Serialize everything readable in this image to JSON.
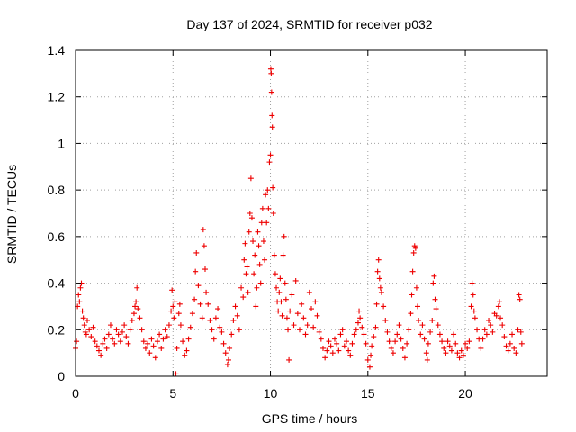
{
  "chart_data": {
    "type": "scatter",
    "title": "Day 137 of 2024, SRMTID for receiver p032",
    "xlabel": "GPS time / hours",
    "ylabel": "SRMTID / TECUs",
    "xlim": [
      0,
      24.2
    ],
    "ylim": [
      0,
      1.4
    ],
    "xticks": [
      0,
      5,
      10,
      15,
      20
    ],
    "xtick_labels": [
      "0",
      "5",
      "10",
      "15",
      "20"
    ],
    "yticks": [
      0,
      0.2,
      0.4,
      0.6,
      0.8,
      1.0,
      1.2,
      1.4
    ],
    "ytick_labels": [
      "0",
      "0.2",
      "0.4",
      "0.6",
      "0.8",
      "1",
      "1.2",
      "1.4"
    ],
    "grid": true,
    "marker": "+",
    "color": "#ee0000",
    "series": [
      {
        "name": "p032",
        "points": [
          [
            0.0,
            0.12
          ],
          [
            0.05,
            0.15
          ],
          [
            0.1,
            0.3
          ],
          [
            0.15,
            0.35
          ],
          [
            0.2,
            0.32
          ],
          [
            0.25,
            0.38
          ],
          [
            0.3,
            0.4
          ],
          [
            0.35,
            0.28
          ],
          [
            0.4,
            0.25
          ],
          [
            0.45,
            0.22
          ],
          [
            0.5,
            0.19
          ],
          [
            0.55,
            0.18
          ],
          [
            0.6,
            0.24
          ],
          [
            0.7,
            0.2
          ],
          [
            0.8,
            0.17
          ],
          [
            0.9,
            0.21
          ],
          [
            1.0,
            0.15
          ],
          [
            1.1,
            0.13
          ],
          [
            1.2,
            0.11
          ],
          [
            1.3,
            0.09
          ],
          [
            1.4,
            0.14
          ],
          [
            1.5,
            0.16
          ],
          [
            1.6,
            0.12
          ],
          [
            1.7,
            0.18
          ],
          [
            1.8,
            0.22
          ],
          [
            1.9,
            0.16
          ],
          [
            2.0,
            0.14
          ],
          [
            2.1,
            0.2
          ],
          [
            2.2,
            0.18
          ],
          [
            2.3,
            0.15
          ],
          [
            2.4,
            0.19
          ],
          [
            2.5,
            0.22
          ],
          [
            2.6,
            0.17
          ],
          [
            2.7,
            0.14
          ],
          [
            2.8,
            0.2
          ],
          [
            2.9,
            0.24
          ],
          [
            3.0,
            0.27
          ],
          [
            3.05,
            0.3
          ],
          [
            3.1,
            0.32
          ],
          [
            3.15,
            0.38
          ],
          [
            3.2,
            0.29
          ],
          [
            3.3,
            0.25
          ],
          [
            3.4,
            0.2
          ],
          [
            3.5,
            0.15
          ],
          [
            3.6,
            0.12
          ],
          [
            3.7,
            0.14
          ],
          [
            3.8,
            0.1
          ],
          [
            3.9,
            0.16
          ],
          [
            4.0,
            0.13
          ],
          [
            4.1,
            0.08
          ],
          [
            4.2,
            0.15
          ],
          [
            4.3,
            0.18
          ],
          [
            4.4,
            0.12
          ],
          [
            4.5,
            0.16
          ],
          [
            4.6,
            0.2
          ],
          [
            4.7,
            0.17
          ],
          [
            4.8,
            0.22
          ],
          [
            4.9,
            0.28
          ],
          [
            4.95,
            0.37
          ],
          [
            5.0,
            0.3
          ],
          [
            5.05,
            0.25
          ],
          [
            5.1,
            0.32
          ],
          [
            5.15,
            0.01
          ],
          [
            5.2,
            0.12
          ],
          [
            5.3,
            0.27
          ],
          [
            5.35,
            0.31
          ],
          [
            5.4,
            0.22
          ],
          [
            5.5,
            0.15
          ],
          [
            5.6,
            0.09
          ],
          [
            5.7,
            0.11
          ],
          [
            5.8,
            0.16
          ],
          [
            5.9,
            0.21
          ],
          [
            6.0,
            0.27
          ],
          [
            6.1,
            0.33
          ],
          [
            6.15,
            0.45
          ],
          [
            6.2,
            0.53
          ],
          [
            6.3,
            0.39
          ],
          [
            6.4,
            0.31
          ],
          [
            6.5,
            0.25
          ],
          [
            6.55,
            0.63
          ],
          [
            6.6,
            0.56
          ],
          [
            6.65,
            0.46
          ],
          [
            6.7,
            0.36
          ],
          [
            6.8,
            0.31
          ],
          [
            6.9,
            0.24
          ],
          [
            7.0,
            0.2
          ],
          [
            7.1,
            0.16
          ],
          [
            7.2,
            0.25
          ],
          [
            7.3,
            0.29
          ],
          [
            7.4,
            0.21
          ],
          [
            7.5,
            0.19
          ],
          [
            7.6,
            0.14
          ],
          [
            7.7,
            0.1
          ],
          [
            7.8,
            0.05
          ],
          [
            7.85,
            0.07
          ],
          [
            7.9,
            0.12
          ],
          [
            8.0,
            0.18
          ],
          [
            8.1,
            0.24
          ],
          [
            8.2,
            0.3
          ],
          [
            8.3,
            0.26
          ],
          [
            8.4,
            0.2
          ],
          [
            8.5,
            0.38
          ],
          [
            8.6,
            0.34
          ],
          [
            8.65,
            0.5
          ],
          [
            8.7,
            0.57
          ],
          [
            8.75,
            0.44
          ],
          [
            8.8,
            0.47
          ],
          [
            8.85,
            0.36
          ],
          [
            8.9,
            0.62
          ],
          [
            8.95,
            0.7
          ],
          [
            9.0,
            0.85
          ],
          [
            9.05,
            0.68
          ],
          [
            9.1,
            0.58
          ],
          [
            9.15,
            0.44
          ],
          [
            9.2,
            0.52
          ],
          [
            9.25,
            0.3
          ],
          [
            9.3,
            0.38
          ],
          [
            9.35,
            0.62
          ],
          [
            9.4,
            0.56
          ],
          [
            9.45,
            0.48
          ],
          [
            9.5,
            0.4
          ],
          [
            9.55,
            0.66
          ],
          [
            9.6,
            0.72
          ],
          [
            9.65,
            0.58
          ],
          [
            9.7,
            0.5
          ],
          [
            9.75,
            0.78
          ],
          [
            9.8,
            0.66
          ],
          [
            9.85,
            0.8
          ],
          [
            9.9,
            0.72
          ],
          [
            9.95,
            0.92
          ],
          [
            10.0,
            0.95
          ],
          [
            10.02,
            1.32
          ],
          [
            10.04,
            1.3
          ],
          [
            10.06,
            1.22
          ],
          [
            10.08,
            1.12
          ],
          [
            10.1,
            1.07
          ],
          [
            10.12,
            0.81
          ],
          [
            10.15,
            0.7
          ],
          [
            10.2,
            0.52
          ],
          [
            10.25,
            0.44
          ],
          [
            10.3,
            0.38
          ],
          [
            10.35,
            0.32
          ],
          [
            10.4,
            0.28
          ],
          [
            10.45,
            0.36
          ],
          [
            10.5,
            0.42
          ],
          [
            10.55,
            0.32
          ],
          [
            10.6,
            0.26
          ],
          [
            10.65,
            0.52
          ],
          [
            10.7,
            0.6
          ],
          [
            10.75,
            0.4
          ],
          [
            10.8,
            0.33
          ],
          [
            10.85,
            0.25
          ],
          [
            10.9,
            0.2
          ],
          [
            10.95,
            0.07
          ],
          [
            11.0,
            0.28
          ],
          [
            11.1,
            0.35
          ],
          [
            11.2,
            0.22
          ],
          [
            11.3,
            0.41
          ],
          [
            11.4,
            0.27
          ],
          [
            11.5,
            0.2
          ],
          [
            11.6,
            0.31
          ],
          [
            11.7,
            0.25
          ],
          [
            11.8,
            0.18
          ],
          [
            11.9,
            0.22
          ],
          [
            12.0,
            0.36
          ],
          [
            12.1,
            0.29
          ],
          [
            12.2,
            0.21
          ],
          [
            12.3,
            0.32
          ],
          [
            12.4,
            0.26
          ],
          [
            12.5,
            0.19
          ],
          [
            12.6,
            0.16
          ],
          [
            12.7,
            0.12
          ],
          [
            12.8,
            0.08
          ],
          [
            12.9,
            0.11
          ],
          [
            13.0,
            0.15
          ],
          [
            13.1,
            0.13
          ],
          [
            13.2,
            0.1
          ],
          [
            13.3,
            0.16
          ],
          [
            13.4,
            0.14
          ],
          [
            13.5,
            0.11
          ],
          [
            13.6,
            0.18
          ],
          [
            13.7,
            0.2
          ],
          [
            13.8,
            0.13
          ],
          [
            13.9,
            0.15
          ],
          [
            14.0,
            0.11
          ],
          [
            14.1,
            0.09
          ],
          [
            14.2,
            0.14
          ],
          [
            14.3,
            0.18
          ],
          [
            14.4,
            0.2
          ],
          [
            14.5,
            0.23
          ],
          [
            14.55,
            0.28
          ],
          [
            14.6,
            0.25
          ],
          [
            14.7,
            0.21
          ],
          [
            14.8,
            0.18
          ],
          [
            14.9,
            0.14
          ],
          [
            15.0,
            0.07
          ],
          [
            15.1,
            0.04
          ],
          [
            15.15,
            0.09
          ],
          [
            15.2,
            0.13
          ],
          [
            15.3,
            0.17
          ],
          [
            15.4,
            0.21
          ],
          [
            15.45,
            0.31
          ],
          [
            15.5,
            0.45
          ],
          [
            15.55,
            0.5
          ],
          [
            15.6,
            0.42
          ],
          [
            15.65,
            0.38
          ],
          [
            15.7,
            0.36
          ],
          [
            15.8,
            0.3
          ],
          [
            15.9,
            0.24
          ],
          [
            16.0,
            0.19
          ],
          [
            16.1,
            0.15
          ],
          [
            16.2,
            0.12
          ],
          [
            16.3,
            0.1
          ],
          [
            16.4,
            0.15
          ],
          [
            16.5,
            0.18
          ],
          [
            16.6,
            0.22
          ],
          [
            16.7,
            0.16
          ],
          [
            16.8,
            0.12
          ],
          [
            16.9,
            0.08
          ],
          [
            17.0,
            0.14
          ],
          [
            17.1,
            0.2
          ],
          [
            17.2,
            0.27
          ],
          [
            17.25,
            0.35
          ],
          [
            17.3,
            0.45
          ],
          [
            17.35,
            0.53
          ],
          [
            17.4,
            0.56
          ],
          [
            17.45,
            0.55
          ],
          [
            17.5,
            0.38
          ],
          [
            17.55,
            0.3
          ],
          [
            17.6,
            0.24
          ],
          [
            17.7,
            0.18
          ],
          [
            17.8,
            0.22
          ],
          [
            17.9,
            0.16
          ],
          [
            18.0,
            0.1
          ],
          [
            18.05,
            0.07
          ],
          [
            18.1,
            0.14
          ],
          [
            18.2,
            0.19
          ],
          [
            18.3,
            0.24
          ],
          [
            18.35,
            0.4
          ],
          [
            18.4,
            0.43
          ],
          [
            18.45,
            0.33
          ],
          [
            18.5,
            0.29
          ],
          [
            18.6,
            0.22
          ],
          [
            18.7,
            0.18
          ],
          [
            18.8,
            0.15
          ],
          [
            18.9,
            0.12
          ],
          [
            19.0,
            0.1
          ],
          [
            19.1,
            0.15
          ],
          [
            19.2,
            0.13
          ],
          [
            19.3,
            0.11
          ],
          [
            19.4,
            0.18
          ],
          [
            19.5,
            0.14
          ],
          [
            19.6,
            0.1
          ],
          [
            19.7,
            0.08
          ],
          [
            19.8,
            0.11
          ],
          [
            19.9,
            0.09
          ],
          [
            20.0,
            0.14
          ],
          [
            20.1,
            0.12
          ],
          [
            20.2,
            0.15
          ],
          [
            20.3,
            0.3
          ],
          [
            20.35,
            0.4
          ],
          [
            20.4,
            0.35
          ],
          [
            20.45,
            0.28
          ],
          [
            20.5,
            0.25
          ],
          [
            20.6,
            0.2
          ],
          [
            20.7,
            0.16
          ],
          [
            20.8,
            0.12
          ],
          [
            20.9,
            0.16
          ],
          [
            21.0,
            0.2
          ],
          [
            21.1,
            0.18
          ],
          [
            21.2,
            0.24
          ],
          [
            21.3,
            0.22
          ],
          [
            21.4,
            0.19
          ],
          [
            21.5,
            0.27
          ],
          [
            21.6,
            0.26
          ],
          [
            21.7,
            0.3
          ],
          [
            21.75,
            0.32
          ],
          [
            21.8,
            0.25
          ],
          [
            21.9,
            0.22
          ],
          [
            22.0,
            0.17
          ],
          [
            22.1,
            0.13
          ],
          [
            22.2,
            0.11
          ],
          [
            22.3,
            0.14
          ],
          [
            22.4,
            0.18
          ],
          [
            22.5,
            0.12
          ],
          [
            22.6,
            0.1
          ],
          [
            22.7,
            0.2
          ],
          [
            22.75,
            0.35
          ],
          [
            22.8,
            0.33
          ],
          [
            22.85,
            0.19
          ],
          [
            22.9,
            0.14
          ]
        ]
      }
    ]
  }
}
